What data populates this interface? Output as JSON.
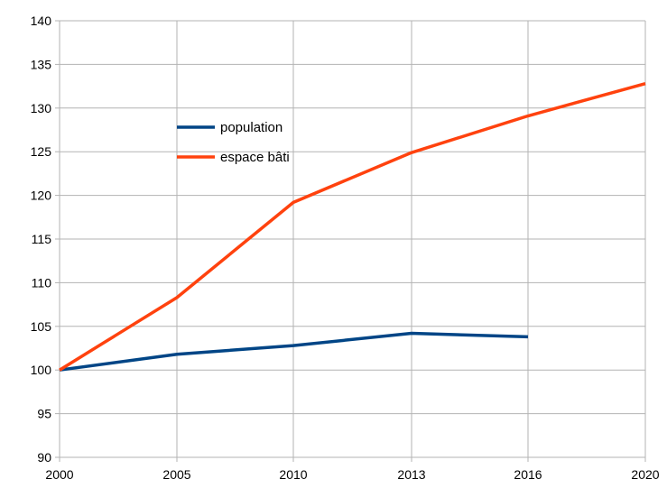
{
  "chart_data": {
    "type": "line",
    "x": [
      "2000",
      "2005",
      "2010",
      "2013",
      "2016",
      "2020"
    ],
    "ylim": [
      90,
      140
    ],
    "yticks": [
      90,
      95,
      100,
      105,
      110,
      115,
      120,
      125,
      130,
      135,
      140
    ],
    "grid": true,
    "legend_position": "upper-left inside plot",
    "series": [
      {
        "name": "population",
        "color": "#004586",
        "values": [
          100,
          101.8,
          102.8,
          104.2,
          103.8,
          null
        ]
      },
      {
        "name": "espace bâti",
        "color": "#ff420e",
        "values": [
          100,
          108.3,
          119.2,
          124.9,
          129.1,
          132.8
        ]
      }
    ]
  }
}
